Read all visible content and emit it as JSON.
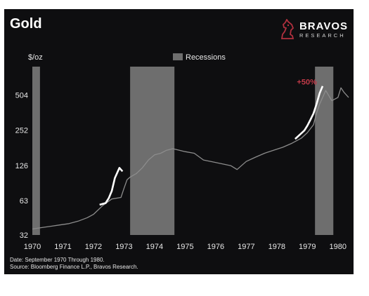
{
  "header": {
    "title": "Gold",
    "brand_name": "BRAVOS",
    "brand_sub": "RESEARCH"
  },
  "footer": {
    "date_note": "Date: September 1970 Through 1980.",
    "source_note": "Source: Bloomberg Finance L.P., Bravos Research."
  },
  "colors": {
    "background": "#0e0e10",
    "price_line": "#8c8c8c",
    "highlight_line": "#ffffff",
    "recession_band": "#6e6e6e",
    "annotation": "#c03a48"
  },
  "chart_data": {
    "type": "line",
    "title": "Gold",
    "ylabel": "$/oz",
    "y_scale": "log",
    "ylim": [
      32,
      880
    ],
    "xlim": [
      1970.0,
      1980.35
    ],
    "y_ticks": [
      32,
      63,
      126,
      252,
      504
    ],
    "x_ticks": [
      1970,
      1971,
      1972,
      1973,
      1974,
      1975,
      1976,
      1977,
      1978,
      1979,
      1980
    ],
    "legend": {
      "label": "Recessions",
      "placement": "top-center"
    },
    "grid": false,
    "recessions": [
      {
        "start": 1970.0,
        "end": 1970.25
      },
      {
        "start": 1973.2,
        "end": 1974.65
      },
      {
        "start": 1979.25,
        "end": 1979.85
      }
    ],
    "series": [
      {
        "x": [
          1970.0,
          1970.3,
          1970.6,
          1970.9,
          1971.2,
          1971.5,
          1971.8,
          1972.0,
          1972.3,
          1972.6,
          1972.9,
          1973.0,
          1973.1,
          1973.2,
          1973.4,
          1973.6,
          1973.8,
          1974.0,
          1974.2,
          1974.4,
          1974.6,
          1974.8,
          1975.0,
          1975.3,
          1975.6,
          1975.9,
          1976.2,
          1976.5,
          1976.7,
          1977.0,
          1977.3,
          1977.6,
          1977.9,
          1978.2,
          1978.5,
          1978.8,
          1979.0,
          1979.2,
          1979.3,
          1979.4,
          1979.6,
          1979.8,
          1980.0,
          1980.1,
          1980.2,
          1980.35
        ],
        "values": [
          36,
          37,
          38,
          39,
          40,
          42,
          45,
          48,
          57,
          65,
          67,
          80,
          95,
          100,
          107,
          120,
          140,
          155,
          160,
          170,
          175,
          170,
          165,
          160,
          140,
          135,
          130,
          125,
          116,
          136,
          148,
          160,
          170,
          180,
          195,
          215,
          240,
          280,
          350,
          420,
          550,
          450,
          480,
          580,
          530,
          480
        ]
      },
      {
        "x": [
          1972.2,
          1972.4,
          1972.5,
          1972.6,
          1972.7,
          1972.85,
          1972.95
        ],
        "values": [
          58,
          60,
          66,
          76,
          98,
          120,
          112
        ]
      },
      {
        "x": [
          1978.6,
          1978.75,
          1978.9,
          1979.0,
          1979.1,
          1979.2,
          1979.3,
          1979.4,
          1979.5
        ],
        "values": [
          212,
          230,
          250,
          275,
          310,
          350,
          420,
          520,
          600
        ]
      }
    ],
    "annotations": [
      {
        "text": "+50%",
        "x": 1979.45,
        "y": 600
      }
    ]
  }
}
